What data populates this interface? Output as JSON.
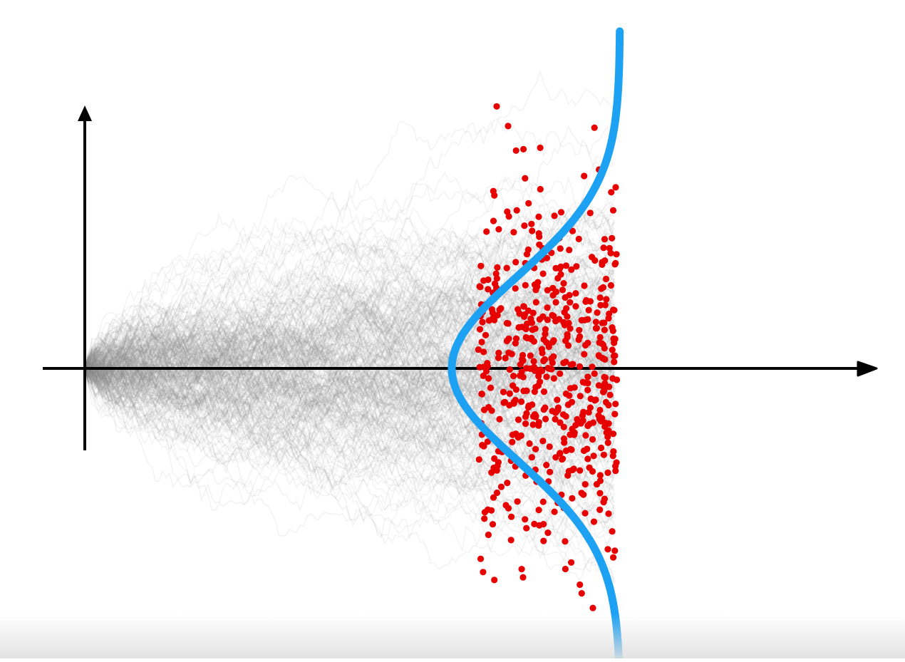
{
  "figure": {
    "kind": "diffusion-paths-with-endpoint-density",
    "colors": {
      "background": "#ffffff",
      "axes": "#000000",
      "paths": "#8a8a8a",
      "samples": "#e60000",
      "density_curve": "#1da1f2"
    },
    "path_count": 300,
    "sample_count": 520,
    "spread_growth": "square-root-of-time"
  }
}
